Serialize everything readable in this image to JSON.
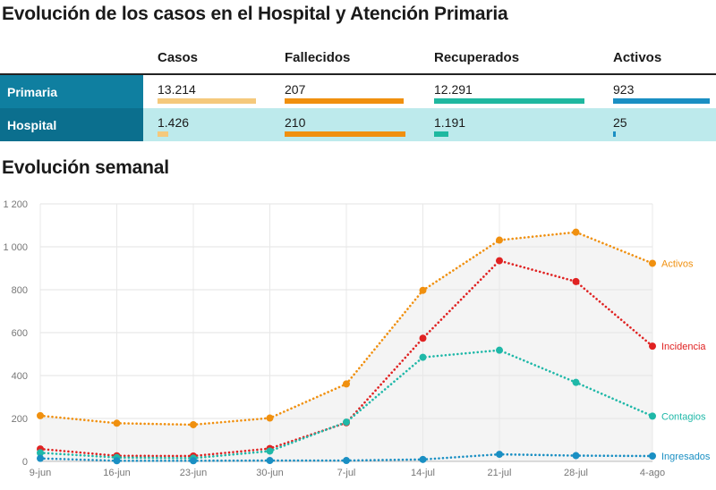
{
  "title": "Evolución de los casos en el Hospital y Atención Primaria",
  "table": {
    "headers": [
      "Casos",
      "Fallecidos",
      "Recuperados",
      "Activos"
    ],
    "rows": [
      {
        "label": "Primaria",
        "values": [
          "13.214",
          "207",
          "12.291",
          "923"
        ],
        "numbers": [
          13214,
          207,
          12291,
          923
        ]
      },
      {
        "label": "Hospital",
        "values": [
          "1.426",
          "210",
          "1.191",
          "25"
        ],
        "numbers": [
          1426,
          210,
          1191,
          25
        ]
      }
    ],
    "column_colors": [
      "#f5c97c",
      "#f0900f",
      "#1fb8a0",
      "#1a8fc3"
    ]
  },
  "subtitle": "Evolución semanal",
  "chart_data": {
    "type": "line",
    "categories": [
      "9-jun",
      "16-jun",
      "23-jun",
      "30-jun",
      "7-jul",
      "14-jul",
      "21-jul",
      "28-jul",
      "4-ago"
    ],
    "y_ticks": [
      "0",
      "200",
      "400",
      "600",
      "800",
      "1 000",
      "1 200"
    ],
    "ylim": [
      0,
      1200
    ],
    "grid": true,
    "series": [
      {
        "name": "Activos",
        "color": "#f0900f",
        "values": [
          213,
          178,
          171,
          202,
          361,
          797,
          1031,
          1068,
          923
        ]
      },
      {
        "name": "Incidencia",
        "color": "#e02222",
        "values": [
          58,
          26,
          25,
          60,
          180,
          574,
          935,
          838,
          537
        ]
      },
      {
        "name": "Contagios",
        "color": "#1fb8a8",
        "values": [
          40,
          18,
          15,
          48,
          183,
          485,
          518,
          368,
          211
        ]
      },
      {
        "name": "Ingresados",
        "color": "#1a8fc3",
        "values": [
          14,
          3,
          3,
          4,
          4,
          9,
          33,
          27,
          25
        ]
      }
    ]
  }
}
